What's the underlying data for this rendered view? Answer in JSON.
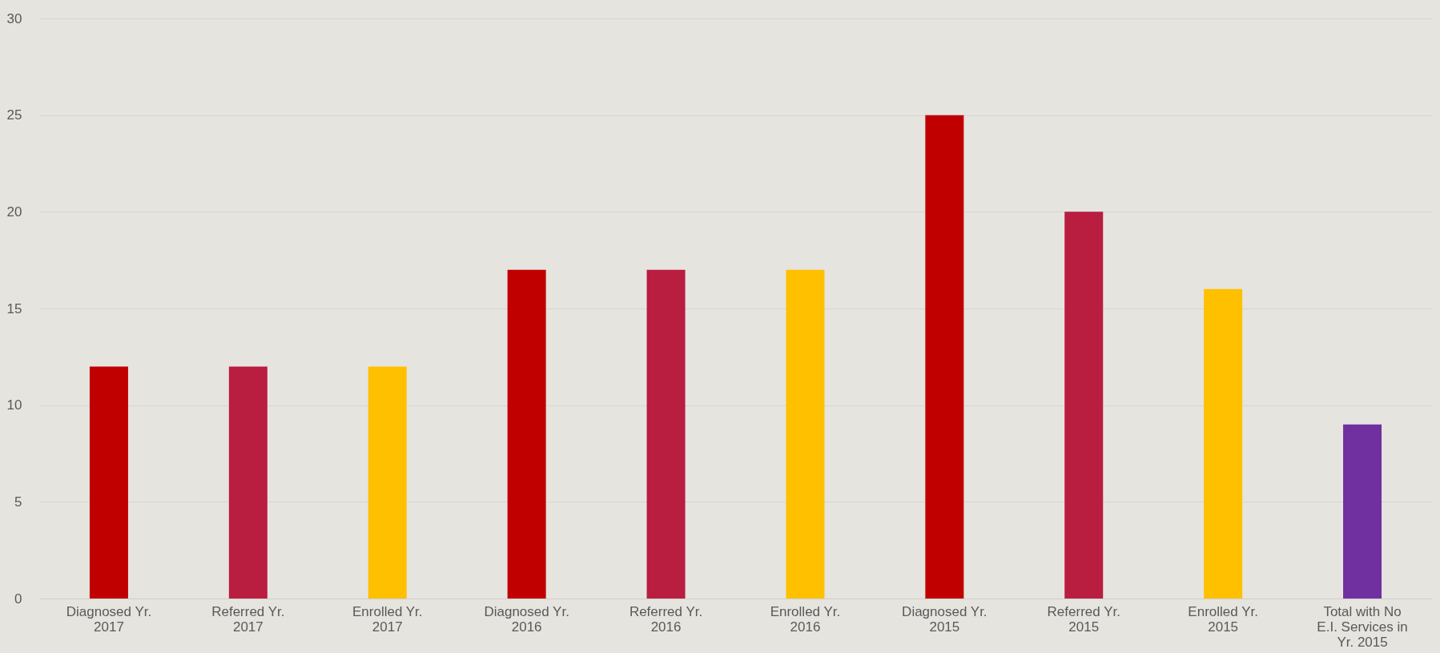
{
  "chart_data": {
    "type": "bar",
    "categories": [
      "Diagnosed Yr. 2017",
      "Referred Yr. 2017",
      "Enrolled Yr. 2017",
      "Diagnosed Yr. 2016",
      "Referred Yr. 2016",
      "Enrolled Yr. 2016",
      "Diagnosed Yr. 2015",
      "Referred Yr. 2015",
      "Enrolled Yr. 2015",
      "Total with No E.I. Services in Yr. 2015"
    ],
    "values": [
      12,
      12,
      12,
      17,
      17,
      17,
      25,
      20,
      16,
      9
    ],
    "colors": [
      "#c00000",
      "#b91d40",
      "#ffc000",
      "#c00000",
      "#b91d40",
      "#ffc000",
      "#c00000",
      "#b91d40",
      "#ffc000",
      "#7030a0"
    ],
    "ylim": [
      0,
      30
    ],
    "yticks": [
      0,
      5,
      10,
      15,
      20,
      25,
      30
    ],
    "grid": "y"
  }
}
